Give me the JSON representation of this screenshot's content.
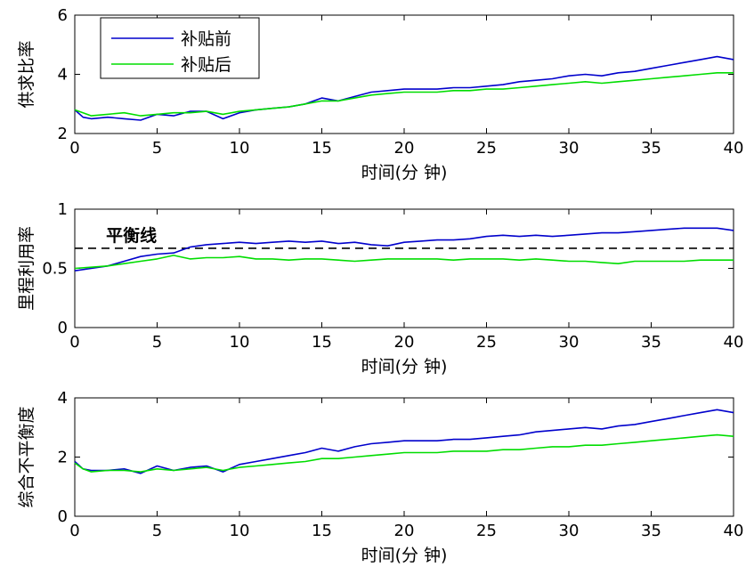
{
  "colors": {
    "before": "#0000cc",
    "after": "#00dd00",
    "axis": "#000000",
    "balance": "#000000"
  },
  "chart_data": [
    {
      "type": "line",
      "xlabel": "时间(分 钟)",
      "ylabel": "供求比率",
      "xlim": [
        0,
        40
      ],
      "ylim": [
        2,
        6
      ],
      "xticks": [
        0,
        5,
        10,
        15,
        20,
        25,
        30,
        35,
        40
      ],
      "yticks": [
        2,
        4,
        6
      ],
      "grid": false,
      "legend": {
        "position": "top-left",
        "entries": [
          "补贴前",
          "补贴后"
        ]
      },
      "x": [
        0,
        0.5,
        1,
        2,
        3,
        4,
        5,
        6,
        7,
        8,
        9,
        10,
        11,
        12,
        13,
        14,
        15,
        16,
        17,
        18,
        19,
        20,
        21,
        22,
        23,
        24,
        25,
        26,
        27,
        28,
        29,
        30,
        31,
        32,
        33,
        34,
        35,
        36,
        37,
        38,
        39,
        40
      ],
      "series": [
        {
          "name": "补贴前",
          "values": [
            2.8,
            2.55,
            2.5,
            2.55,
            2.5,
            2.45,
            2.65,
            2.6,
            2.75,
            2.75,
            2.5,
            2.7,
            2.8,
            2.85,
            2.9,
            3.0,
            3.2,
            3.1,
            3.25,
            3.4,
            3.45,
            3.5,
            3.5,
            3.5,
            3.55,
            3.55,
            3.6,
            3.65,
            3.75,
            3.8,
            3.85,
            3.95,
            4.0,
            3.95,
            4.05,
            4.1,
            4.2,
            4.3,
            4.4,
            4.5,
            4.6,
            4.5
          ]
        },
        {
          "name": "补贴后",
          "values": [
            2.8,
            2.7,
            2.6,
            2.65,
            2.7,
            2.6,
            2.65,
            2.7,
            2.7,
            2.75,
            2.65,
            2.75,
            2.8,
            2.85,
            2.9,
            3.0,
            3.1,
            3.1,
            3.2,
            3.3,
            3.35,
            3.4,
            3.4,
            3.4,
            3.45,
            3.45,
            3.5,
            3.5,
            3.55,
            3.6,
            3.65,
            3.7,
            3.75,
            3.7,
            3.75,
            3.8,
            3.85,
            3.9,
            3.95,
            4.0,
            4.05,
            4.05
          ]
        }
      ]
    },
    {
      "type": "line",
      "xlabel": "时间(分 钟)",
      "ylabel": "里程利用率",
      "xlim": [
        0,
        40
      ],
      "ylim": [
        0,
        1
      ],
      "xticks": [
        0,
        5,
        10,
        15,
        20,
        25,
        30,
        35,
        40
      ],
      "yticks": [
        0,
        0.5,
        1
      ],
      "grid": false,
      "reference_line": {
        "label": "平衡线",
        "y": 0.67
      },
      "x": [
        0,
        1,
        2,
        3,
        4,
        5,
        6,
        7,
        8,
        9,
        10,
        11,
        12,
        13,
        14,
        15,
        16,
        17,
        18,
        19,
        20,
        21,
        22,
        23,
        24,
        25,
        26,
        27,
        28,
        29,
        30,
        31,
        32,
        33,
        34,
        35,
        36,
        37,
        38,
        39,
        40
      ],
      "series": [
        {
          "name": "补贴前",
          "values": [
            0.48,
            0.5,
            0.52,
            0.56,
            0.6,
            0.62,
            0.63,
            0.68,
            0.7,
            0.71,
            0.72,
            0.71,
            0.72,
            0.73,
            0.72,
            0.73,
            0.71,
            0.72,
            0.7,
            0.69,
            0.72,
            0.73,
            0.74,
            0.74,
            0.75,
            0.77,
            0.78,
            0.77,
            0.78,
            0.77,
            0.78,
            0.79,
            0.8,
            0.8,
            0.81,
            0.82,
            0.83,
            0.84,
            0.84,
            0.84,
            0.82
          ]
        },
        {
          "name": "补贴后",
          "values": [
            0.5,
            0.51,
            0.52,
            0.54,
            0.56,
            0.58,
            0.61,
            0.58,
            0.59,
            0.59,
            0.6,
            0.58,
            0.58,
            0.57,
            0.58,
            0.58,
            0.57,
            0.56,
            0.57,
            0.58,
            0.58,
            0.58,
            0.58,
            0.57,
            0.58,
            0.58,
            0.58,
            0.57,
            0.58,
            0.57,
            0.56,
            0.56,
            0.55,
            0.54,
            0.56,
            0.56,
            0.56,
            0.56,
            0.57,
            0.57,
            0.57
          ]
        }
      ]
    },
    {
      "type": "line",
      "xlabel": "时间(分 钟)",
      "ylabel": "综合不平衡度",
      "xlim": [
        0,
        40
      ],
      "ylim": [
        0,
        4
      ],
      "xticks": [
        0,
        5,
        10,
        15,
        20,
        25,
        30,
        35,
        40
      ],
      "yticks": [
        0,
        2,
        4
      ],
      "grid": false,
      "x": [
        0,
        0.5,
        1,
        2,
        3,
        4,
        5,
        6,
        7,
        8,
        9,
        10,
        11,
        12,
        13,
        14,
        15,
        16,
        17,
        18,
        19,
        20,
        21,
        22,
        23,
        24,
        25,
        26,
        27,
        28,
        29,
        30,
        31,
        32,
        33,
        34,
        35,
        36,
        37,
        38,
        39,
        40
      ],
      "series": [
        {
          "name": "补贴前",
          "values": [
            1.85,
            1.6,
            1.55,
            1.55,
            1.6,
            1.45,
            1.7,
            1.55,
            1.65,
            1.7,
            1.5,
            1.75,
            1.85,
            1.95,
            2.05,
            2.15,
            2.3,
            2.2,
            2.35,
            2.45,
            2.5,
            2.55,
            2.55,
            2.55,
            2.6,
            2.6,
            2.65,
            2.7,
            2.75,
            2.85,
            2.9,
            2.95,
            3.0,
            2.95,
            3.05,
            3.1,
            3.2,
            3.3,
            3.4,
            3.5,
            3.6,
            3.5
          ]
        },
        {
          "name": "补贴后",
          "values": [
            1.8,
            1.6,
            1.5,
            1.55,
            1.55,
            1.5,
            1.6,
            1.55,
            1.6,
            1.65,
            1.55,
            1.65,
            1.7,
            1.75,
            1.8,
            1.85,
            1.95,
            1.95,
            2.0,
            2.05,
            2.1,
            2.15,
            2.15,
            2.15,
            2.2,
            2.2,
            2.2,
            2.25,
            2.25,
            2.3,
            2.35,
            2.35,
            2.4,
            2.4,
            2.45,
            2.5,
            2.55,
            2.6,
            2.65,
            2.7,
            2.75,
            2.7
          ]
        }
      ]
    }
  ]
}
